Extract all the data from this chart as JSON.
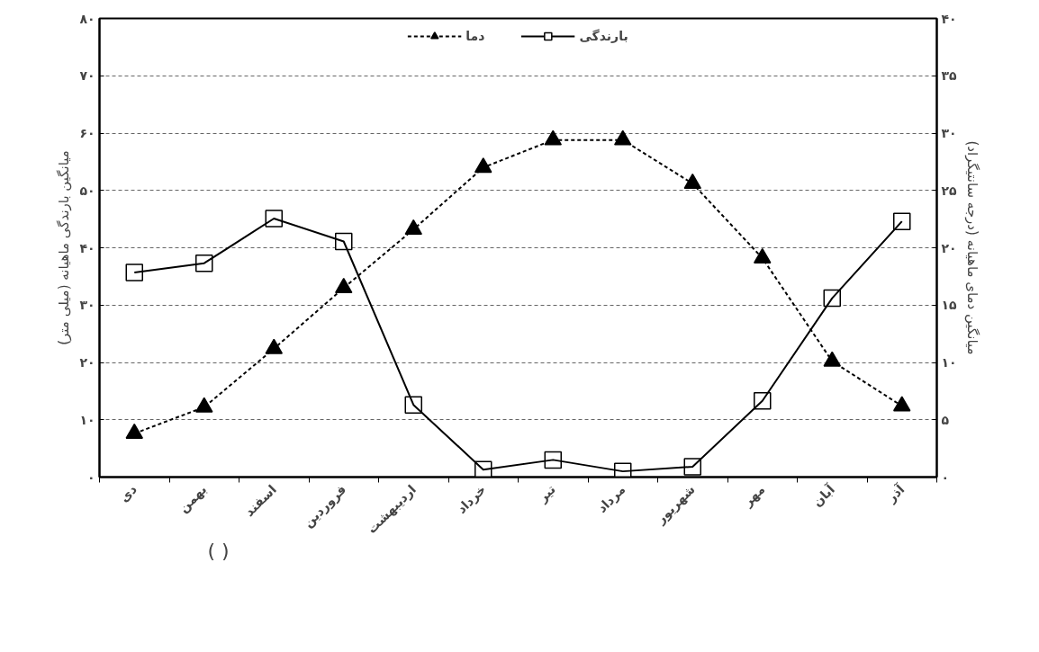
{
  "chart_data": {
    "type": "line",
    "categories": [
      "دی",
      "بهمن",
      "اسفند",
      "فروردین",
      "اردیبهشت",
      "خرداد",
      "تیر",
      "مرداد",
      "شهریور",
      "مهر",
      "آبان",
      "آذر"
    ],
    "ylabel": "میانگین بارندگی ماهیانه (میلی متر)",
    "y2label": "میانگین دمای ماهیانه (درجه سانتیگراد)",
    "ylim": [
      0,
      80
    ],
    "yticks": [
      {
        "value": 0,
        "label": "۰"
      },
      {
        "value": 10,
        "label": "۱۰"
      },
      {
        "value": 20,
        "label": "۲۰"
      },
      {
        "value": 30,
        "label": "۳۰"
      },
      {
        "value": 40,
        "label": "۴۰"
      },
      {
        "value": 50,
        "label": "۵۰"
      },
      {
        "value": 60,
        "label": "۶۰"
      },
      {
        "value": 70,
        "label": "۷۰"
      },
      {
        "value": 80,
        "label": "۸۰"
      }
    ],
    "y2lim": [
      0,
      40
    ],
    "y2ticks": [
      {
        "value": 0,
        "label": "۰"
      },
      {
        "value": 5,
        "label": "۵"
      },
      {
        "value": 10,
        "label": "۱۰"
      },
      {
        "value": 15,
        "label": "۱۵"
      },
      {
        "value": 20,
        "label": "۲۰"
      },
      {
        "value": 25,
        "label": "۲۵"
      },
      {
        "value": 30,
        "label": "۳۰"
      },
      {
        "value": 35,
        "label": "۳۵"
      },
      {
        "value": 40,
        "label": "۴۰"
      }
    ],
    "grid": "y",
    "legend": "top",
    "series": [
      {
        "name": "دما",
        "color": "#000000",
        "axis": "y2",
        "marker": "triangle",
        "line_style": "dashed",
        "values": [
          3.8,
          6.1,
          11.2,
          16.5,
          21.6,
          27,
          29.4,
          29.4,
          25.6,
          19.1,
          10.1,
          6.2
        ]
      },
      {
        "name": "بارندگی",
        "color": "#000000",
        "marker": "square",
        "line_style": "solid",
        "values": [
          35.7,
          37.3,
          45.1,
          41.1,
          12.6,
          1.3,
          3.0,
          1.0,
          1.8,
          13.3,
          31.2,
          44.6
        ]
      }
    ],
    "annotations": [
      "(                  )"
    ]
  }
}
